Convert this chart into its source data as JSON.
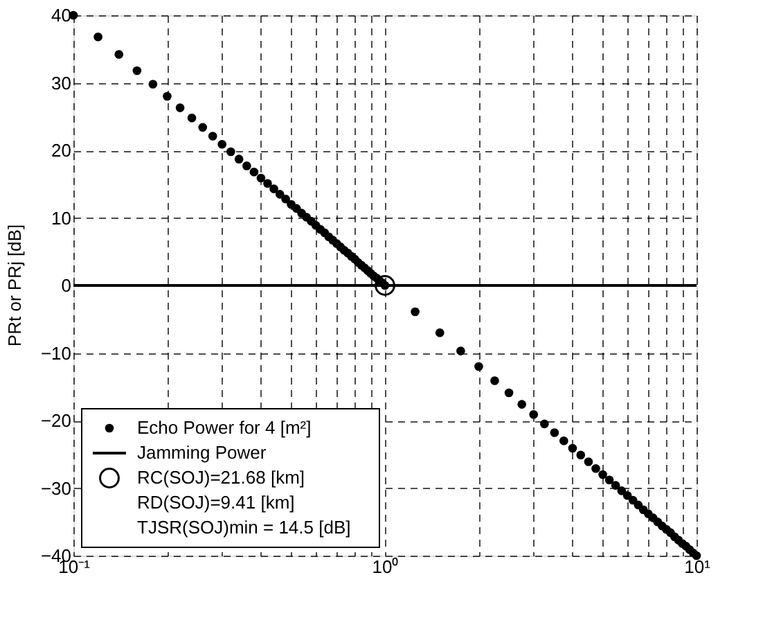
{
  "chart_data": {
    "type": "scatter",
    "ylabel": "PRt or PRj [dB]",
    "series": [
      {
        "name": "Echo Power for 4 [m²]",
        "marker": "circle",
        "color": "#000000",
        "x": [
          0.1,
          0.12,
          0.14,
          0.16,
          0.18,
          0.2,
          0.22,
          0.24,
          0.26,
          0.28,
          0.3,
          0.32,
          0.34,
          0.36,
          0.38,
          0.4,
          0.42,
          0.44,
          0.46,
          0.48,
          0.5,
          0.52,
          0.54,
          0.56,
          0.58,
          0.6,
          0.62,
          0.64,
          0.66,
          0.68,
          0.7,
          0.72,
          0.74,
          0.76,
          0.78,
          0.8,
          0.82,
          0.84,
          0.86,
          0.88,
          0.9,
          0.92,
          0.94,
          0.96,
          0.98,
          1,
          1.25,
          1.5,
          1.75,
          2,
          2.25,
          2.5,
          2.75,
          3,
          3.25,
          3.5,
          3.75,
          4,
          4.25,
          4.5,
          4.75,
          5,
          5.25,
          5.5,
          5.75,
          6,
          6.25,
          6.5,
          6.75,
          7,
          7.25,
          7.5,
          7.75,
          8,
          8.25,
          8.5,
          8.75,
          9,
          9.25,
          9.5,
          9.75,
          10
        ],
        "values": [
          40.0,
          36.8,
          34.2,
          31.8,
          29.8,
          28.0,
          26.3,
          24.8,
          23.4,
          22.1,
          20.9,
          19.8,
          18.7,
          17.7,
          16.8,
          15.9,
          15.1,
          14.3,
          13.5,
          12.8,
          12.0,
          11.4,
          10.7,
          10.1,
          9.5,
          8.9,
          8.3,
          7.8,
          7.2,
          6.7,
          6.2,
          5.7,
          5.2,
          4.8,
          4.3,
          3.9,
          3.4,
          3.0,
          2.6,
          2.2,
          1.8,
          1.4,
          1.1,
          0.7,
          0.4,
          0,
          -3.9,
          -7.0,
          -9.7,
          -12.0,
          -14.1,
          -15.9,
          -17.6,
          -19.1,
          -20.5,
          -21.8,
          -23.0,
          -24.1,
          -25.1,
          -26.1,
          -27.1,
          -28.0,
          -28.8,
          -29.6,
          -30.4,
          -31.1,
          -31.8,
          -32.5,
          -33.2,
          -33.8,
          -34.4,
          -35.0,
          -35.6,
          -36.1,
          -36.6,
          -37.2,
          -37.7,
          -38.2,
          -38.6,
          -39.1,
          -39.6,
          -40.0
        ]
      },
      {
        "name": "Jamming Power",
        "type": "line",
        "line_style": "solid",
        "color": "#000000",
        "x": [
          0.1,
          10
        ],
        "values": [
          0,
          0
        ]
      },
      {
        "name": "RC(SOJ)=21.68 [km]",
        "marker": "circle",
        "color": "#000000",
        "x": [
          1
        ],
        "values": [
          0
        ]
      }
    ],
    "annotations": [
      "RD(SOJ)=9.41 [km]",
      "TJSR(SOJ)min = 14.5 [dB]"
    ],
    "log": "x",
    "xlim": [
      0.1,
      10
    ],
    "xticks": [
      {
        "value": 0.1,
        "label": "10⁻¹"
      },
      {
        "value": 0.2,
        "label": null
      },
      {
        "value": 0.3,
        "label": null
      },
      {
        "value": 0.4,
        "label": null
      },
      {
        "value": 0.5,
        "label": null
      },
      {
        "value": 0.6,
        "label": null
      },
      {
        "value": 0.7,
        "label": null
      },
      {
        "value": 0.8,
        "label": null
      },
      {
        "value": 0.9,
        "label": null
      },
      {
        "value": 1,
        "label": "10⁰"
      },
      {
        "value": 2,
        "label": null
      },
      {
        "value": 3,
        "label": null
      },
      {
        "value": 4,
        "label": null
      },
      {
        "value": 5,
        "label": null
      },
      {
        "value": 6,
        "label": null
      },
      {
        "value": 7,
        "label": null
      },
      {
        "value": 8,
        "label": null
      },
      {
        "value": 9,
        "label": null
      },
      {
        "value": 10,
        "label": "10¹"
      }
    ],
    "ylim": [
      -40,
      40
    ],
    "yticks": [
      -40,
      -30,
      -20,
      -10,
      0,
      10,
      20,
      30,
      40
    ],
    "grid": true,
    "legend": "bottom left"
  }
}
